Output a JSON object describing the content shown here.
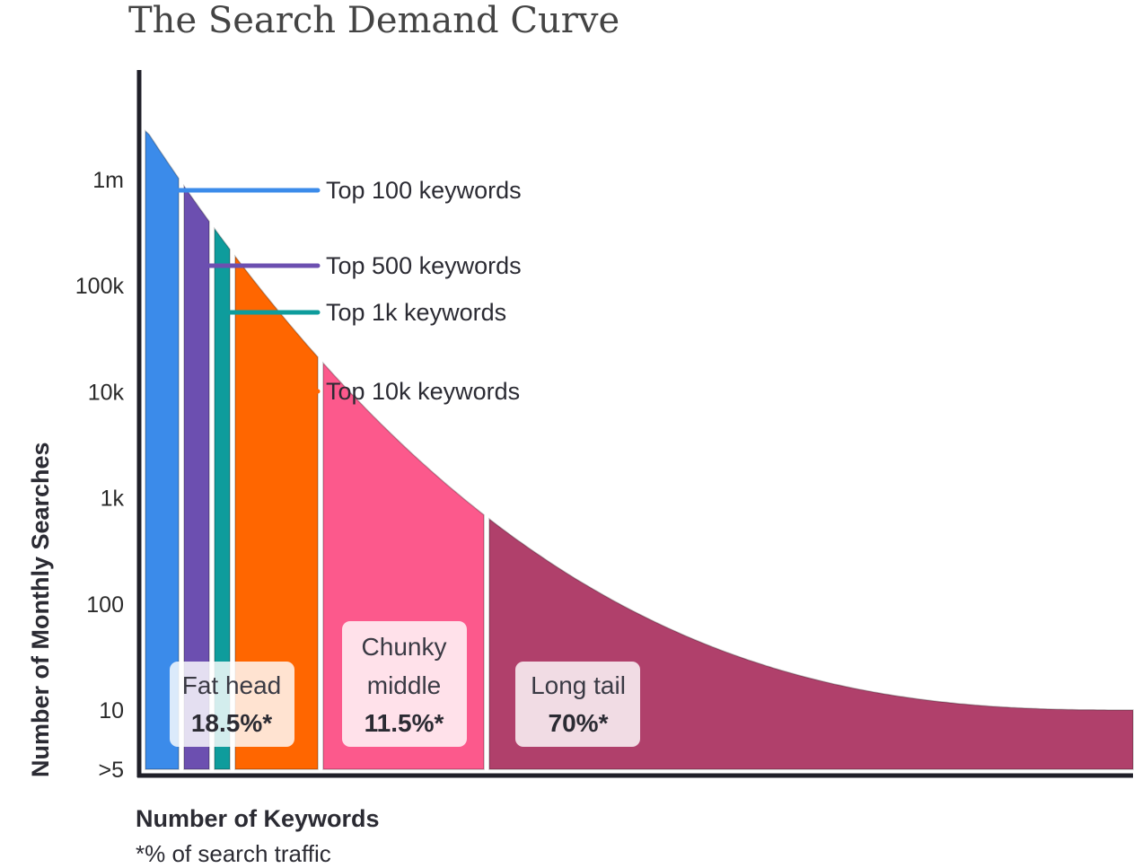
{
  "chart_data": {
    "type": "area",
    "title": "The Search Demand Curve",
    "xlabel": "Number of Keywords",
    "ylabel": "Number of Monthly Searches",
    "footnote": "*% of search traffic",
    "y_scale": "log",
    "y_ticks": [
      {
        "label": "1m",
        "value": 1000000
      },
      {
        "label": "100k",
        "value": 100000
      },
      {
        "label": "10k",
        "value": 10000
      },
      {
        "label": "1k",
        "value": 1000
      },
      {
        "label": "100",
        "value": 100
      },
      {
        "label": "10",
        "value": 10
      },
      {
        "label": ">5",
        "value": 5
      }
    ],
    "curve_peak_value": 3000000,
    "curve_end_value": 10,
    "bands": [
      {
        "name": "Top 100 keywords",
        "color": "#3b8bea"
      },
      {
        "name": "Top 500 keywords",
        "color": "#6c4fb0"
      },
      {
        "name": "Top 1k keywords",
        "color": "#0e9c9c"
      },
      {
        "name": "Top 10k keywords",
        "color": "#ff6600"
      },
      {
        "name": "Chunky middle",
        "color": "#fc598c"
      },
      {
        "name": "Long tail",
        "color": "#b0406b"
      }
    ],
    "callouts": [
      {
        "label": "Top 100 keywords",
        "color": "#3b8bea"
      },
      {
        "label": "Top 500 keywords",
        "color": "#6c4fb0"
      },
      {
        "label": "Top 1k keywords",
        "color": "#0e9c9c"
      },
      {
        "label": "Top 10k keywords",
        "color": "#ff6600"
      }
    ],
    "segments": [
      {
        "name": "Fat head",
        "share": "18.5%*",
        "share_value": 18.5
      },
      {
        "name_lines": [
          "Chunky",
          "middle"
        ],
        "share": "11.5%*",
        "share_value": 11.5
      },
      {
        "name": "Long tail",
        "share": "70%*",
        "share_value": 70
      }
    ],
    "grid": false,
    "legend": "none"
  }
}
